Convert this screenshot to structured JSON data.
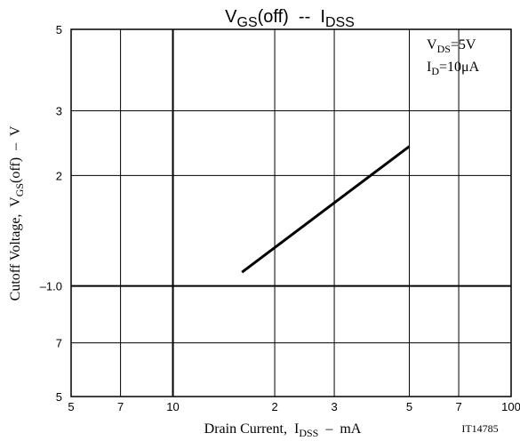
{
  "chart_data": {
    "type": "line",
    "title": [
      "V",
      "GS",
      "(off)  --  I",
      "DSS"
    ],
    "x_label": [
      "Drain Current,  I",
      "DSS",
      "  –  mA"
    ],
    "y_label": [
      "Cutoff Voltage,  V",
      "GS",
      "(off)  –  V"
    ],
    "annotations": [
      [
        "V",
        "DS",
        "=5V"
      ],
      [
        "I",
        "D",
        "=10μA"
      ]
    ],
    "figure_code": "IT14785",
    "xscale": "log",
    "yscale": "log",
    "grid": true,
    "xlim": [
      5,
      100
    ],
    "ylim": [
      0.5,
      5
    ],
    "xticks": [
      5,
      7,
      10,
      {
        "value": 20,
        "label": "2"
      },
      {
        "value": 30,
        "label": "3"
      },
      {
        "value": 50,
        "label": "5"
      },
      {
        "value": 70,
        "label": "7"
      },
      100
    ],
    "yticks": [
      {
        "value": 0.5,
        "label": "5"
      },
      {
        "value": 0.7,
        "label": "7"
      },
      {
        "value": 1,
        "label": "–1.0"
      },
      2,
      3,
      5
    ],
    "series": [
      {
        "name": null,
        "color": "#000000",
        "x": [
          16,
          50
        ],
        "values": [
          1.09,
          2.4
        ]
      }
    ]
  }
}
